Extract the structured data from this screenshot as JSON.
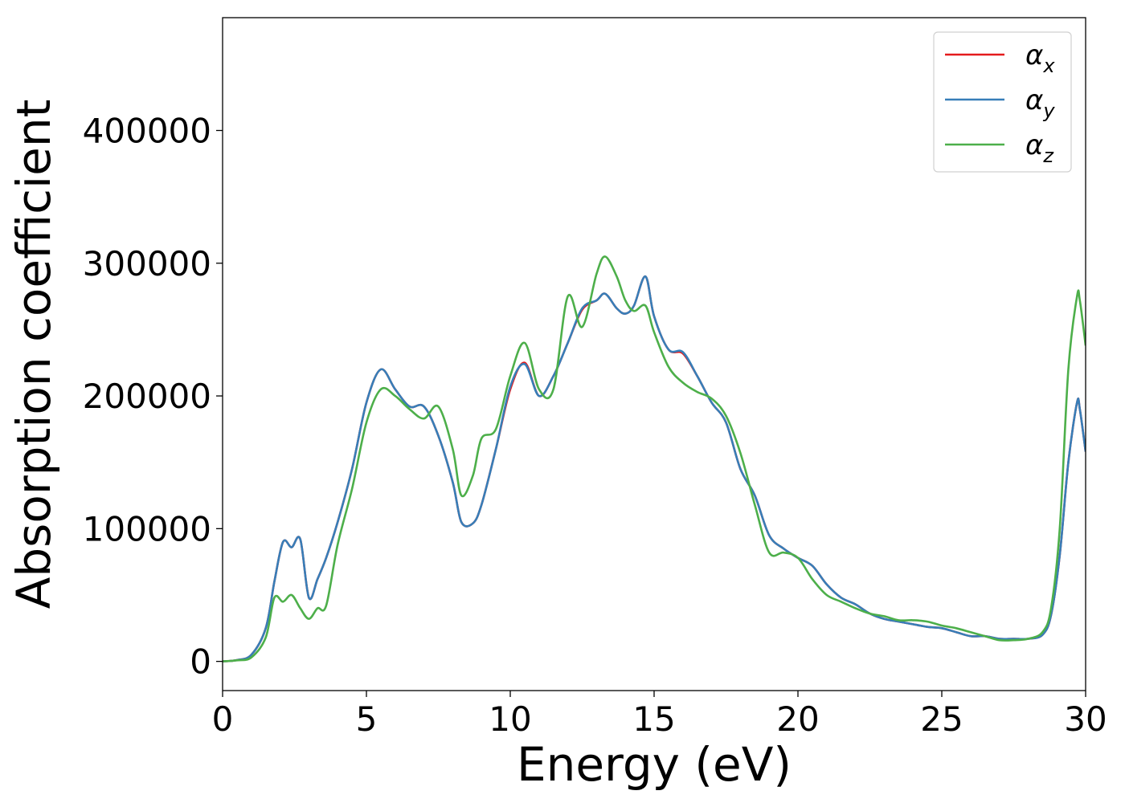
{
  "chart_data": {
    "type": "line",
    "xlabel": "Energy (eV)",
    "ylabel": "Absorption coefficient",
    "xlim": [
      0,
      30
    ],
    "ylim": [
      -22000,
      485000
    ],
    "xticks": [
      0,
      5,
      10,
      15,
      20,
      25,
      30
    ],
    "xtick_labels": [
      "0",
      "5",
      "10",
      "15",
      "20",
      "25",
      "30"
    ],
    "yticks": [
      0,
      100000,
      200000,
      300000,
      400000
    ],
    "ytick_labels": [
      "0",
      "100000",
      "200000",
      "300000",
      "400000"
    ],
    "grid": false,
    "legend_position": "top-right",
    "x": [
      0,
      0.5,
      1,
      1.5,
      1.8,
      2.1,
      2.4,
      2.7,
      3,
      3.3,
      3.6,
      4,
      4.5,
      5,
      5.5,
      6,
      6.5,
      7,
      7.5,
      8,
      8.3,
      8.7,
      9,
      9.5,
      10,
      10.5,
      11,
      11.5,
      12,
      12.5,
      13,
      13.3,
      13.7,
      14,
      14.3,
      14.7,
      15,
      15.5,
      16,
      16.5,
      17,
      17.5,
      18,
      18.5,
      19,
      19.5,
      20,
      20.5,
      21,
      21.5,
      22,
      22.5,
      23,
      23.5,
      24,
      24.5,
      25,
      25.5,
      26,
      26.5,
      27,
      27.5,
      28,
      28.5,
      28.8,
      29.1,
      29.4,
      29.7,
      29.8,
      30
    ],
    "series": [
      {
        "name": "α_x",
        "color": "#e41a1c",
        "values": [
          0,
          1000,
          5000,
          25000,
          60000,
          90000,
          86000,
          92000,
          48000,
          62000,
          78000,
          105000,
          145000,
          195000,
          220000,
          205000,
          192000,
          192000,
          170000,
          135000,
          105000,
          104000,
          118000,
          160000,
          205000,
          225000,
          200000,
          215000,
          240000,
          265000,
          272000,
          277000,
          266000,
          262000,
          268000,
          290000,
          260000,
          235000,
          232000,
          215000,
          195000,
          180000,
          145000,
          125000,
          95000,
          85000,
          78000,
          72000,
          58000,
          48000,
          43000,
          36000,
          32000,
          30000,
          28000,
          26000,
          25000,
          22000,
          19000,
          19000,
          17000,
          17000,
          17000,
          20000,
          35000,
          80000,
          150000,
          195000,
          190000,
          158000
        ]
      },
      {
        "name": "α_y",
        "color": "#377eb8",
        "values": [
          0,
          1000,
          5000,
          25000,
          60000,
          90000,
          86000,
          92000,
          48000,
          62000,
          78000,
          105000,
          145000,
          195000,
          220000,
          205000,
          192000,
          192000,
          170000,
          135000,
          105000,
          104000,
          118000,
          160000,
          207000,
          224000,
          200000,
          215000,
          240000,
          266000,
          272000,
          277000,
          266000,
          262000,
          268000,
          290000,
          260000,
          235000,
          233000,
          215000,
          195000,
          180000,
          145000,
          125000,
          95000,
          85000,
          78000,
          72000,
          58000,
          48000,
          43000,
          36000,
          32000,
          30000,
          28000,
          26000,
          25000,
          22000,
          19000,
          19000,
          17000,
          17000,
          17000,
          20000,
          35000,
          80000,
          150000,
          195000,
          190000,
          158000
        ]
      },
      {
        "name": "α_z",
        "color": "#4daf4a",
        "values": [
          0,
          800,
          3000,
          18000,
          48000,
          45000,
          50000,
          40000,
          32000,
          40000,
          42000,
          88000,
          130000,
          180000,
          205000,
          200000,
          190000,
          183000,
          192000,
          160000,
          125000,
          140000,
          168000,
          175000,
          215000,
          240000,
          205000,
          205000,
          275000,
          252000,
          292000,
          305000,
          290000,
          272000,
          264000,
          268000,
          248000,
          222000,
          210000,
          203000,
          198000,
          185000,
          157000,
          118000,
          82000,
          82000,
          78000,
          62000,
          50000,
          45000,
          40000,
          36000,
          34000,
          31000,
          31000,
          30000,
          27000,
          25000,
          22000,
          19000,
          16000,
          16000,
          17000,
          22000,
          40000,
          100000,
          220000,
          275000,
          272000,
          238000
        ]
      }
    ]
  },
  "legend": {
    "items": [
      {
        "symbol": "α",
        "sub": "x"
      },
      {
        "symbol": "α",
        "sub": "y"
      },
      {
        "symbol": "α",
        "sub": "z"
      }
    ]
  }
}
